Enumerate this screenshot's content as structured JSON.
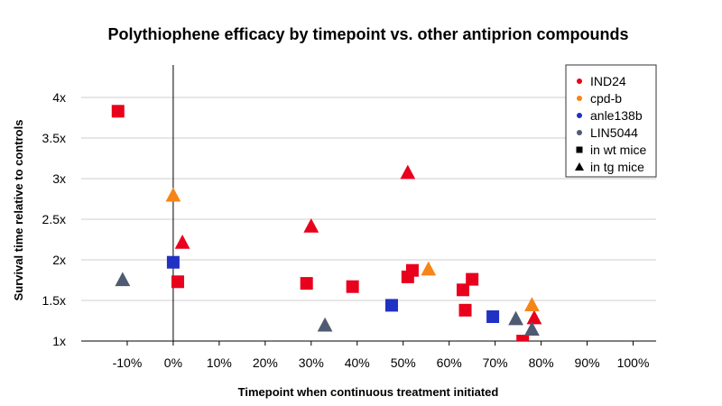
{
  "chart_data": {
    "type": "scatter",
    "title": "Polythiophene efficacy by timepoint vs. other antiprion compounds",
    "xlabel": "Timepoint when continuous treatment initiated",
    "ylabel": "Survival time relative to controls",
    "xlim": [
      -0.2,
      1.05
    ],
    "ylim": [
      1.0,
      4.4
    ],
    "x_ticks": [
      -0.1,
      0,
      0.1,
      0.2,
      0.3,
      0.4,
      0.5,
      0.6,
      0.7,
      0.8,
      0.9,
      1.0
    ],
    "x_tick_labels": [
      "-10%",
      "0%",
      "10%",
      "20%",
      "30%",
      "40%",
      "50%",
      "60%",
      "70%",
      "80%",
      "90%",
      "100%"
    ],
    "y_ticks": [
      1,
      1.5,
      2,
      2.5,
      3,
      3.5,
      4
    ],
    "y_tick_labels": [
      "1x",
      "1.5x",
      "2x",
      "2.5x",
      "3x",
      "3.5x",
      "4x"
    ],
    "grid": "horizontal",
    "legend_position": "top-right",
    "colors": {
      "IND24": "#e8001c",
      "cpd-b": "#f58518",
      "anle138b": "#2131c4",
      "LIN5044": "#4f5b73",
      "axis": "#000000",
      "grid": "#cccccc"
    },
    "legend": [
      {
        "label": "IND24",
        "marker": "dot",
        "color_key": "IND24"
      },
      {
        "label": "cpd-b",
        "marker": "dot",
        "color_key": "cpd-b"
      },
      {
        "label": "anle138b",
        "marker": "dot",
        "color_key": "anle138b"
      },
      {
        "label": "LIN5044",
        "marker": "dot",
        "color_key": "LIN5044"
      },
      {
        "label": "in wt mice",
        "marker": "square",
        "color_key": "axis"
      },
      {
        "label": "in tg mice",
        "marker": "triangle",
        "color_key": "axis"
      }
    ],
    "series": [
      {
        "name": "IND24",
        "points": [
          {
            "x": -0.12,
            "y": 3.83,
            "marker": "square"
          },
          {
            "x": 0.01,
            "y": 1.73,
            "marker": "square"
          },
          {
            "x": 0.02,
            "y": 2.21,
            "marker": "triangle"
          },
          {
            "x": 0.29,
            "y": 1.71,
            "marker": "square"
          },
          {
            "x": 0.3,
            "y": 2.41,
            "marker": "triangle"
          },
          {
            "x": 0.39,
            "y": 1.67,
            "marker": "square"
          },
          {
            "x": 0.51,
            "y": 1.79,
            "marker": "square"
          },
          {
            "x": 0.51,
            "y": 3.07,
            "marker": "triangle"
          },
          {
            "x": 0.52,
            "y": 1.87,
            "marker": "square"
          },
          {
            "x": 0.63,
            "y": 1.63,
            "marker": "square"
          },
          {
            "x": 0.635,
            "y": 1.38,
            "marker": "square"
          },
          {
            "x": 0.65,
            "y": 1.76,
            "marker": "square"
          },
          {
            "x": 0.76,
            "y": 1.0,
            "marker": "square"
          },
          {
            "x": 0.785,
            "y": 1.28,
            "marker": "triangle"
          }
        ]
      },
      {
        "name": "cpd-b",
        "points": [
          {
            "x": 0.0,
            "y": 2.79,
            "marker": "triangle"
          },
          {
            "x": 0.555,
            "y": 1.88,
            "marker": "triangle"
          },
          {
            "x": 0.78,
            "y": 1.44,
            "marker": "triangle"
          }
        ]
      },
      {
        "name": "anle138b",
        "points": [
          {
            "x": 0.0,
            "y": 1.97,
            "marker": "square"
          },
          {
            "x": 0.475,
            "y": 1.44,
            "marker": "square"
          },
          {
            "x": 0.695,
            "y": 1.3,
            "marker": "square"
          }
        ]
      },
      {
        "name": "LIN5044",
        "points": [
          {
            "x": -0.11,
            "y": 1.75,
            "marker": "triangle"
          },
          {
            "x": 0.33,
            "y": 1.19,
            "marker": "triangle"
          },
          {
            "x": 0.745,
            "y": 1.27,
            "marker": "triangle"
          },
          {
            "x": 0.78,
            "y": 1.14,
            "marker": "triangle"
          }
        ]
      }
    ]
  }
}
